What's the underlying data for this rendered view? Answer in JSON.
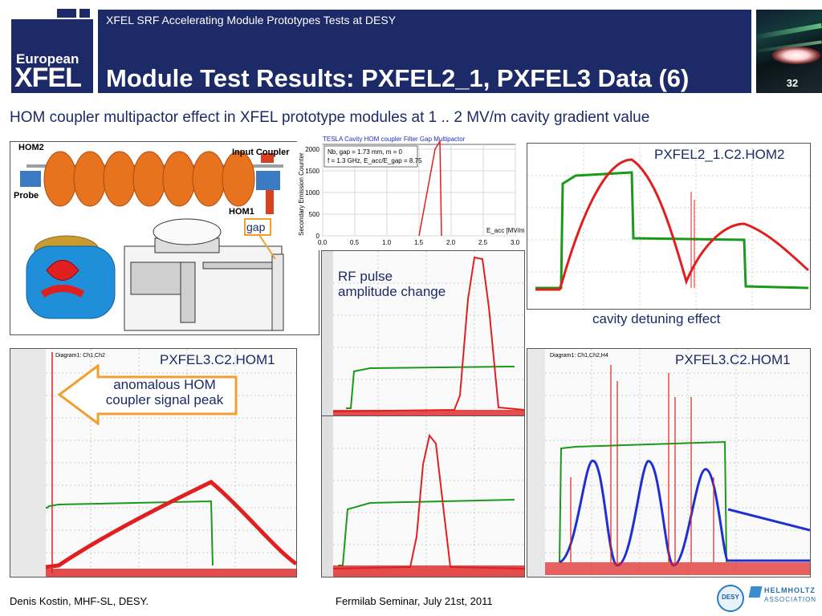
{
  "header": {
    "logo_line1": "European",
    "logo_line2": "XFEL",
    "subtitle": "XFEL SRF Accelerating Module Prototypes Tests at DESY",
    "title": "Module Test Results: PXFEL2_1, PXFEL3 Data (6)",
    "page_number": "32"
  },
  "caption": "HOM coupler multipactor effect in XFEL prototype modules at 1 .. 2 MV/m cavity gradient value",
  "cavity_panel": {
    "hom2": "HOM2",
    "input_coupler": "Input Coupler",
    "probe": "Probe",
    "hom1": "HOM1",
    "gap": "gap"
  },
  "multipactor_chart": {
    "title": "TESLA Cavity HOM coupler Filter Gap Multipactor",
    "legend_line1": "Nb, gap = 1.73 mm, m = 0",
    "legend_line2": "f = 1.3 GHz, E_acc/E_gap = 8.75",
    "ylabel": "Secondary Emission Counter",
    "xlabel": "E_acc [MV/m]",
    "x_ticks": [
      "0.0",
      "0.5",
      "1.0",
      "1.5",
      "2.0",
      "2.5",
      "3.0"
    ],
    "y_ticks": [
      "0",
      "500",
      "1000",
      "1500",
      "2000"
    ]
  },
  "labels": {
    "pxfel2_hom2": "PXFEL2_1.C2.HOM2",
    "pxfel3_hom1_left": "PXFEL3.C2.HOM1",
    "pxfel3_hom1_right": "PXFEL3.C2.HOM1",
    "rf_pulse_line1": "RF pulse",
    "rf_pulse_line2": "amplitude change",
    "detuning": "cavity detuning effect",
    "anomalous_line1": "anomalous HOM",
    "anomalous_line2": "coupler signal peak",
    "diagram_left": "Diagram1: Ch1,Ch2",
    "diagram_right": "Diagram1: Ch1,Ch2,H4"
  },
  "footer": {
    "author": "Denis Kostin, MHF-SL, DESY.",
    "event": "Fermilab Seminar, July 21st, 2011",
    "desy": "DESY",
    "helmholtz_line1": "HELMHOLTZ",
    "helmholtz_line2": "ASSOCIATION"
  },
  "colors": {
    "navy": "#1c2a68",
    "signal_red": "#e02020",
    "signal_green": "#1a9a1a",
    "signal_blue": "#2030d0",
    "arrow_orange": "#f0a030"
  }
}
